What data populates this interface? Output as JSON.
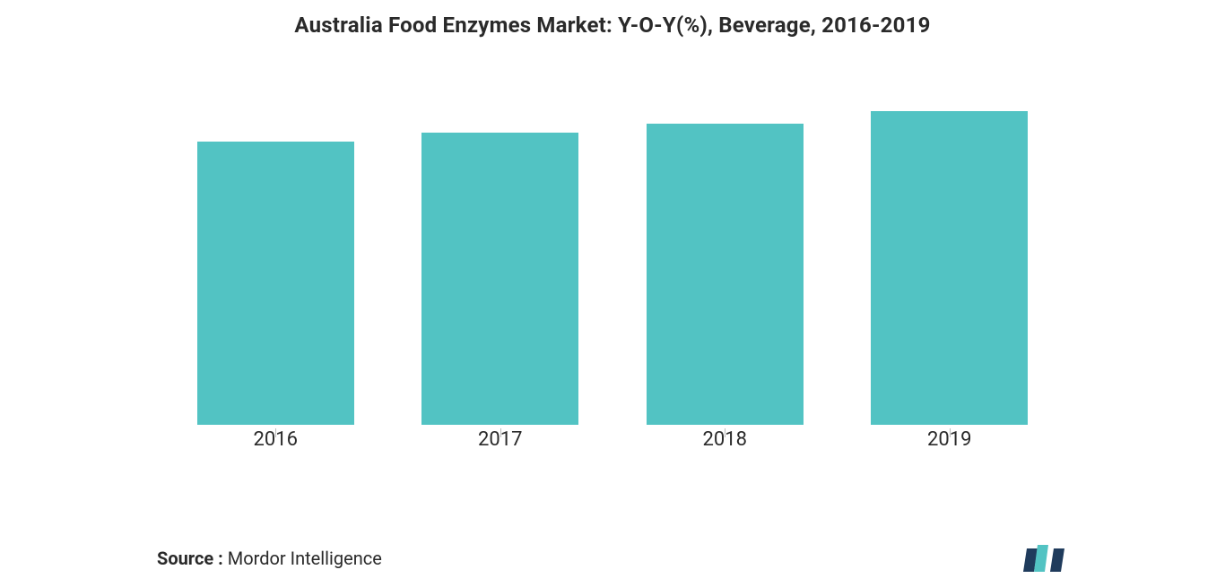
{
  "chart": {
    "type": "bar",
    "title": "Australia Food Enzymes Market: Y-O-Y(%), Beverage, 2016-2019",
    "title_fontsize": 24,
    "title_color": "#2a2a2a",
    "categories": [
      "2016",
      "2017",
      "2018",
      "2019"
    ],
    "values": [
      316,
      326,
      336,
      350
    ],
    "y_max": 410,
    "bar_color": "#52c3c3",
    "bar_width": 0.7,
    "label_fontsize": 22,
    "label_color": "#2a2a2a",
    "tick_color": "#bdbdbd",
    "background_color": "#ffffff"
  },
  "source": {
    "label": "Source : ",
    "value": "Mordor Intelligence",
    "fontsize": 20,
    "color": "#2a2a2a"
  },
  "logo": {
    "name": "mordor-logo",
    "bar_color_dark": "#1f3b5c",
    "bar_color_light": "#52c3c3"
  }
}
